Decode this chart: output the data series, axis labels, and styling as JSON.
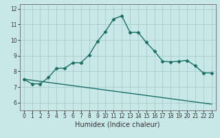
{
  "xlabel": "Humidex (Indice chaleur)",
  "xlim": [
    -0.5,
    23.5
  ],
  "ylim": [
    5.5,
    12.3
  ],
  "yticks": [
    6,
    7,
    8,
    9,
    10,
    11,
    12
  ],
  "xticks": [
    0,
    1,
    2,
    3,
    4,
    5,
    6,
    7,
    8,
    9,
    10,
    11,
    12,
    13,
    14,
    15,
    16,
    17,
    18,
    19,
    20,
    21,
    22,
    23
  ],
  "bg_color": "#c8e8e8",
  "grid_color": "#a8cccc",
  "line_color": "#1a6e64",
  "curve1_x": [
    0,
    1,
    2,
    3,
    4,
    5,
    6,
    7,
    8,
    9,
    10,
    11,
    12,
    13,
    14,
    15,
    16,
    17,
    18,
    19,
    20,
    21,
    22,
    23
  ],
  "curve1_y": [
    7.5,
    7.2,
    7.2,
    7.6,
    8.2,
    8.2,
    8.55,
    8.55,
    9.05,
    9.9,
    10.55,
    11.35,
    11.55,
    10.5,
    10.5,
    9.85,
    9.3,
    8.65,
    8.6,
    8.65,
    8.7,
    8.35,
    7.9,
    7.9
  ],
  "curve2_x": [
    0,
    23
  ],
  "curve2_y": [
    7.5,
    5.9
  ],
  "marker": "D",
  "marker_size": 2.5,
  "line_width": 1.0,
  "tick_fontsize": 5.5,
  "xlabel_fontsize": 7
}
